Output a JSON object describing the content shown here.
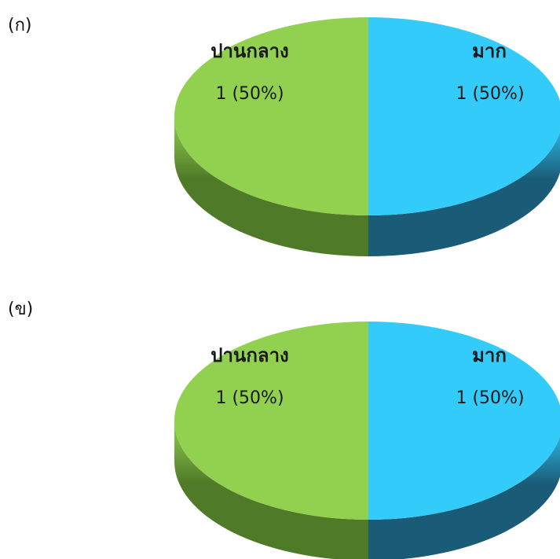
{
  "panels": [
    {
      "label": "(ก)"
    },
    {
      "label": "(ข)"
    }
  ],
  "chart_data": [
    {
      "type": "pie",
      "slices": [
        {
          "label": "มาก",
          "value": 1,
          "percent_label": "1 (50%)",
          "color": "#33ccfa",
          "side_color": "#1a5c78"
        },
        {
          "label": "ปานกลาง",
          "value": 1,
          "percent_label": "1 (50%)",
          "color": "#92d050",
          "side_color": "#4f7a28"
        }
      ]
    },
    {
      "type": "pie",
      "slices": [
        {
          "label": "มาก",
          "value": 1,
          "percent_label": "1 (50%)",
          "color": "#33ccfa",
          "side_color": "#1a5c78"
        },
        {
          "label": "ปานกลาง",
          "value": 1,
          "percent_label": "1 (50%)",
          "color": "#92d050",
          "side_color": "#4f7a28"
        }
      ]
    }
  ]
}
